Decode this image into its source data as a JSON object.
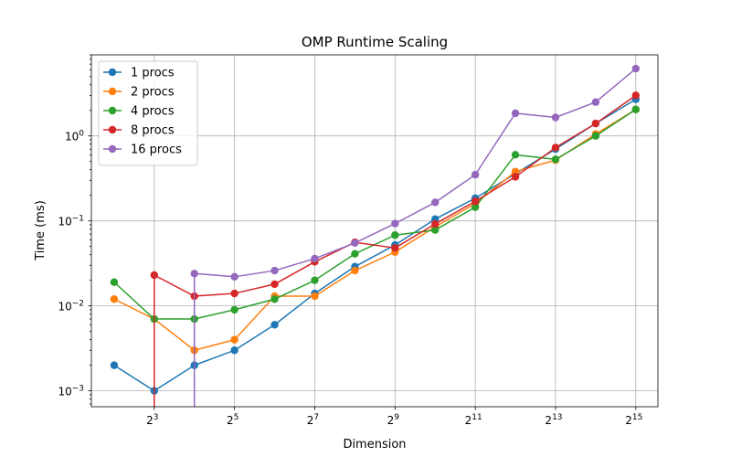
{
  "chart_data": {
    "type": "line",
    "title": "OMP Runtime Scaling",
    "xlabel": "Dimension",
    "ylabel": "Time (ms)",
    "x_scale": "log2",
    "y_scale": "log10",
    "xlim": [
      2.7,
      48000
    ],
    "ylim": [
      0.00065,
      9.0
    ],
    "x_ticks": [
      {
        "value": 8,
        "base": "2",
        "exp": "3"
      },
      {
        "value": 32,
        "base": "2",
        "exp": "5"
      },
      {
        "value": 128,
        "base": "2",
        "exp": "7"
      },
      {
        "value": 512,
        "base": "2",
        "exp": "9"
      },
      {
        "value": 2048,
        "base": "2",
        "exp": "11"
      },
      {
        "value": 8192,
        "base": "2",
        "exp": "13"
      },
      {
        "value": 32768,
        "base": "2",
        "exp": "15"
      }
    ],
    "y_ticks": [
      {
        "value": 0.001,
        "base": "10",
        "exp": "−3"
      },
      {
        "value": 0.01,
        "base": "10",
        "exp": "−2"
      },
      {
        "value": 0.1,
        "base": "10",
        "exp": "−1"
      },
      {
        "value": 1,
        "base": "10",
        "exp": "0"
      }
    ],
    "grid": true,
    "legend_position": "top-left",
    "x": [
      4,
      8,
      16,
      32,
      64,
      128,
      256,
      512,
      1024,
      2048,
      4096,
      8192,
      16384,
      32768
    ],
    "series": [
      {
        "name": "1 procs",
        "color": "#1f77b4",
        "values": [
          0.002,
          0.001,
          0.002,
          0.003,
          0.006,
          0.014,
          0.029,
          0.052,
          0.105,
          0.185,
          0.36,
          0.7,
          1.4,
          2.7
        ]
      },
      {
        "name": "2 procs",
        "color": "#ff7f0e",
        "values": [
          0.012,
          0.007,
          0.003,
          0.004,
          0.013,
          0.013,
          0.026,
          0.043,
          0.085,
          0.16,
          0.38,
          0.52,
          1.05,
          2.05
        ]
      },
      {
        "name": "4 procs",
        "color": "#2ca02c",
        "values": [
          0.019,
          0.007,
          0.007,
          0.009,
          0.012,
          0.02,
          0.041,
          0.068,
          0.078,
          0.145,
          0.6,
          0.53,
          1.0,
          2.05
        ]
      },
      {
        "name": "8 procs",
        "color": "#d62728",
        "values": [
          null,
          0.023,
          0.013,
          0.014,
          0.018,
          0.033,
          0.056,
          0.048,
          0.092,
          0.17,
          0.33,
          0.73,
          1.4,
          3.0
        ]
      },
      {
        "name": "16 procs",
        "color": "#9467bd",
        "values": [
          null,
          null,
          0.024,
          0.022,
          0.026,
          0.036,
          0.055,
          0.093,
          0.165,
          0.35,
          1.85,
          1.65,
          2.5,
          6.2
        ]
      }
    ],
    "drop_lines": [
      {
        "series": "8 procs",
        "x": 8
      },
      {
        "series": "16 procs",
        "x": 16
      }
    ]
  }
}
